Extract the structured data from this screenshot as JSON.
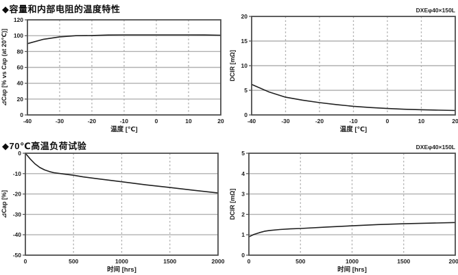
{
  "page": {
    "sections": [
      {
        "title": "◆容量和内部电阻的温度特性"
      },
      {
        "title": "◆70℃高温负荷试验"
      }
    ],
    "device_label": "DXEφ40×150L"
  },
  "colors": {
    "series_line": "#1f1f1f",
    "grid_line": "#b0b0b0",
    "frame": "#4d4d4d",
    "text": "#1c1c1c"
  },
  "chart_data": [
    {
      "id": "cap-vs-temperature",
      "type": "line",
      "title": "",
      "xlabel": "温度 [℃]",
      "ylabel": "⊿Cap [% vs Cap (at 20℃)]",
      "annotation": "",
      "xlim": [
        -40,
        20
      ],
      "ylim": [
        0,
        120
      ],
      "xticks": [
        -40,
        -30,
        -20,
        -10,
        0,
        10,
        20
      ],
      "yticks": [
        0,
        20,
        40,
        60,
        80,
        100,
        120
      ],
      "grid": "on",
      "legend": "none",
      "x": [
        -40,
        -35,
        -30,
        -25,
        -20,
        -15,
        -10,
        -5,
        0,
        5,
        10,
        15,
        20
      ],
      "y": [
        90,
        95.5,
        98.5,
        100,
        100.2,
        100.8,
        101,
        101,
        101,
        101,
        101,
        100.9,
        100.6
      ]
    },
    {
      "id": "dcir-vs-temperature",
      "type": "line",
      "title": "",
      "xlabel": "温度 [℃]",
      "ylabel": "DCIR [mΩ]",
      "annotation": "DXEφ40×150L",
      "xlim": [
        -40,
        20
      ],
      "ylim": [
        0,
        20
      ],
      "xticks": [
        -40,
        -30,
        -20,
        -10,
        0,
        10,
        20
      ],
      "yticks": [
        0,
        5,
        10,
        15,
        20
      ],
      "grid": "on",
      "legend": "none",
      "x": [
        -40,
        -35,
        -30,
        -25,
        -20,
        -15,
        -10,
        -5,
        0,
        5,
        10,
        15,
        20
      ],
      "y": [
        6.2,
        4.7,
        3.6,
        3.0,
        2.5,
        2.1,
        1.75,
        1.5,
        1.3,
        1.15,
        1.05,
        0.97,
        0.9
      ]
    },
    {
      "id": "cap-vs-time",
      "type": "line",
      "title": "",
      "xlabel": "时间 [hrs]",
      "ylabel": "⊿Cap [%]",
      "annotation": "",
      "xlim": [
        0,
        2000
      ],
      "ylim": [
        -50,
        0
      ],
      "xticks": [
        0,
        500,
        1000,
        1500,
        2000
      ],
      "yticks": [
        0,
        -10,
        -20,
        -30,
        -40,
        -50
      ],
      "grid": "on",
      "legend": "none",
      "x": [
        0,
        50,
        100,
        150,
        200,
        250,
        300,
        400,
        500,
        600,
        750,
        1000,
        1250,
        1500,
        1750,
        2000
      ],
      "y": [
        0,
        -2.8,
        -5.2,
        -7.0,
        -8.2,
        -9.0,
        -9.6,
        -10.2,
        -10.8,
        -11.6,
        -12.5,
        -14.0,
        -15.5,
        -16.8,
        -18.2,
        -19.5
      ]
    },
    {
      "id": "dcir-vs-time",
      "type": "line",
      "title": "",
      "xlabel": "时间 [hrs]",
      "ylabel": "DCIR [mΩ]",
      "annotation": "DXEφ40×150L",
      "xlim": [
        0,
        2000
      ],
      "ylim": [
        0,
        5
      ],
      "xticks": [
        0,
        500,
        1000,
        1500,
        2000
      ],
      "yticks": [
        0,
        1,
        2,
        3,
        4,
        5
      ],
      "grid": "on",
      "legend": "none",
      "x": [
        0,
        50,
        100,
        150,
        200,
        300,
        400,
        500,
        750,
        1000,
        1250,
        1500,
        1750,
        2000
      ],
      "y": [
        0.9,
        1.02,
        1.1,
        1.17,
        1.21,
        1.26,
        1.29,
        1.31,
        1.38,
        1.44,
        1.5,
        1.54,
        1.57,
        1.6
      ]
    }
  ]
}
